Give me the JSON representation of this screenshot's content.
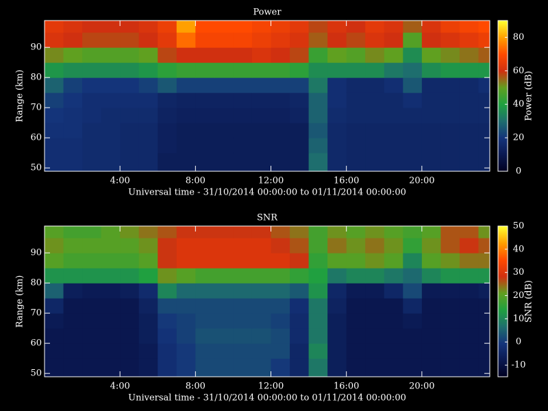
{
  "chart_data": [
    {
      "type": "heatmap",
      "title": "Power",
      "xlabel": "Universal time - 31/10/2014 00:00:00 to 01/11/2014 00:00:00",
      "ylabel": "Range (km)",
      "clabel": "Power (dB)",
      "xlim": [
        0,
        23.6
      ],
      "ylim": [
        48.9,
        98.9
      ],
      "clim": [
        0,
        90
      ],
      "xticks": [
        {
          "value": 4,
          "label": "4:00"
        },
        {
          "value": 8,
          "label": "8:00"
        },
        {
          "value": 12,
          "label": "12:00"
        },
        {
          "value": 16,
          "label": "16:00"
        },
        {
          "value": 20,
          "label": "20:00"
        }
      ],
      "yticks": [
        50,
        60,
        70,
        80,
        90
      ],
      "cticks": [
        0,
        20,
        40,
        60,
        80
      ],
      "colormap": [
        "#000020",
        "#0a1850",
        "#14347a",
        "#1e6e6e",
        "#1fa040",
        "#60a020",
        "#d03010",
        "#ff4a00",
        "#ffa000",
        "#ffff30"
      ],
      "x_edges": [
        0,
        1,
        2,
        3,
        4,
        5,
        6,
        7,
        8,
        9,
        10,
        11,
        12,
        13,
        14,
        15,
        16,
        17,
        18,
        19,
        20,
        21,
        22,
        23,
        23.6
      ],
      "y_edges": [
        48.9,
        55,
        60,
        65,
        70,
        75,
        80,
        85,
        90,
        95,
        98.9
      ],
      "z": [
        [
          18,
          18,
          17,
          17,
          16,
          16,
          12,
          12,
          12,
          12,
          12,
          12,
          12,
          12,
          30,
          16,
          15,
          15,
          15,
          15,
          15,
          15,
          15,
          15
        ],
        [
          18,
          18,
          17,
          17,
          16,
          16,
          13,
          12,
          12,
          12,
          12,
          12,
          12,
          12,
          28,
          16,
          15,
          15,
          15,
          15,
          15,
          15,
          15,
          15
        ],
        [
          19,
          19,
          17,
          17,
          16,
          16,
          13,
          12,
          12,
          12,
          12,
          12,
          12,
          12,
          26,
          16,
          15,
          15,
          15,
          15,
          15,
          15,
          15,
          15
        ],
        [
          20,
          19,
          18,
          17,
          17,
          17,
          14,
          13,
          13,
          13,
          13,
          13,
          13,
          14,
          28,
          17,
          16,
          16,
          16,
          16,
          16,
          16,
          16,
          16
        ],
        [
          22,
          20,
          18,
          18,
          18,
          18,
          15,
          14,
          14,
          14,
          14,
          14,
          14,
          15,
          28,
          18,
          16,
          16,
          16,
          18,
          16,
          16,
          16,
          16
        ],
        [
          28,
          22,
          20,
          20,
          20,
          22,
          26,
          22,
          22,
          22,
          22,
          22,
          22,
          22,
          32,
          18,
          16,
          16,
          18,
          26,
          16,
          16,
          16,
          18
        ],
        [
          38,
          36,
          36,
          36,
          36,
          38,
          42,
          44,
          44,
          44,
          44,
          44,
          44,
          42,
          36,
          36,
          36,
          36,
          32,
          30,
          36,
          38,
          38,
          38
        ],
        [
          52,
          50,
          48,
          48,
          48,
          50,
          58,
          60,
          60,
          60,
          60,
          62,
          60,
          58,
          44,
          50,
          48,
          52,
          50,
          36,
          50,
          52,
          54,
          56
        ],
        [
          62,
          60,
          58,
          58,
          58,
          60,
          64,
          74,
          68,
          68,
          68,
          66,
          64,
          62,
          56,
          60,
          58,
          62,
          60,
          48,
          60,
          62,
          64,
          66
        ],
        [
          64,
          62,
          60,
          60,
          60,
          62,
          66,
          80,
          70,
          70,
          70,
          68,
          66,
          64,
          58,
          62,
          60,
          64,
          62,
          56,
          62,
          66,
          68,
          70
        ]
      ]
    },
    {
      "type": "heatmap",
      "title": "SNR",
      "xlabel": "Universal time - 31/10/2014 00:00:00 to 01/11/2014 00:00:00",
      "ylabel": "Range (km)",
      "clabel": "SNR (dB)",
      "xlim": [
        0,
        23.6
      ],
      "ylim": [
        48.9,
        98.9
      ],
      "clim": [
        -15,
        50
      ],
      "xticks": [
        {
          "value": 4,
          "label": "4:00"
        },
        {
          "value": 8,
          "label": "8:00"
        },
        {
          "value": 12,
          "label": "12:00"
        },
        {
          "value": 16,
          "label": "16:00"
        },
        {
          "value": 20,
          "label": "20:00"
        }
      ],
      "yticks": [
        50,
        60,
        70,
        80,
        90
      ],
      "cticks": [
        -10,
        0,
        10,
        20,
        30,
        40,
        50
      ],
      "colormap": [
        "#000020",
        "#0a1850",
        "#14347a",
        "#1e6e6e",
        "#1fa040",
        "#60a020",
        "#d03010",
        "#ff4a00",
        "#ffa000",
        "#ffff30"
      ],
      "x_edges": [
        0,
        1,
        2,
        3,
        4,
        5,
        6,
        7,
        8,
        9,
        10,
        11,
        12,
        13,
        14,
        15,
        16,
        17,
        18,
        19,
        20,
        21,
        22,
        23,
        23.6
      ],
      "y_edges": [
        48.9,
        55,
        60,
        65,
        70,
        75,
        80,
        85,
        90,
        95,
        98.9
      ],
      "z": [
        [
          -8,
          -8,
          -8,
          -8,
          -8,
          -7,
          -2,
          0,
          2,
          2,
          2,
          2,
          0,
          -4,
          8,
          -6,
          -8,
          -8,
          -8,
          -8,
          -8,
          -8,
          -8,
          -8
        ],
        [
          -8,
          -8,
          -8,
          -8,
          -8,
          -7,
          -2,
          0,
          2,
          2,
          2,
          2,
          2,
          -4,
          10,
          -6,
          -8,
          -8,
          -8,
          -8,
          -8,
          -8,
          -8,
          -8
        ],
        [
          -8,
          -8,
          -8,
          -8,
          -8,
          -6,
          -1,
          1,
          3,
          3,
          3,
          3,
          2,
          -3,
          8,
          -6,
          -8,
          -8,
          -8,
          -8,
          -8,
          -8,
          -8,
          -8
        ],
        [
          -7,
          -8,
          -8,
          -8,
          -8,
          -6,
          0,
          1,
          2,
          2,
          2,
          2,
          1,
          -3,
          8,
          -6,
          -8,
          -8,
          -8,
          -7,
          -8,
          -8,
          -8,
          -8
        ],
        [
          -4,
          -8,
          -8,
          -8,
          -8,
          -5,
          2,
          2,
          2,
          2,
          2,
          2,
          2,
          -2,
          8,
          -5,
          -8,
          -8,
          -8,
          -4,
          -8,
          -8,
          -8,
          -8
        ],
        [
          5,
          -6,
          -7,
          -7,
          -6,
          -3,
          10,
          6,
          6,
          6,
          6,
          6,
          6,
          4,
          12,
          -4,
          -7,
          -7,
          -4,
          2,
          -7,
          -7,
          -7,
          -6
        ],
        [
          12,
          12,
          12,
          12,
          12,
          14,
          22,
          20,
          18,
          18,
          18,
          18,
          18,
          16,
          14,
          8,
          10,
          10,
          8,
          6,
          10,
          12,
          12,
          12
        ],
        [
          20,
          18,
          18,
          18,
          18,
          20,
          28,
          30,
          30,
          30,
          30,
          30,
          30,
          28,
          16,
          20,
          20,
          22,
          20,
          10,
          20,
          22,
          24,
          24
        ],
        [
          22,
          20,
          20,
          20,
          20,
          22,
          28,
          30,
          30,
          30,
          30,
          30,
          28,
          26,
          18,
          24,
          22,
          24,
          22,
          16,
          22,
          26,
          28,
          26
        ],
        [
          20,
          18,
          18,
          20,
          22,
          24,
          26,
          28,
          28,
          28,
          28,
          28,
          26,
          24,
          18,
          22,
          20,
          22,
          20,
          18,
          20,
          26,
          26,
          22
        ]
      ]
    }
  ]
}
